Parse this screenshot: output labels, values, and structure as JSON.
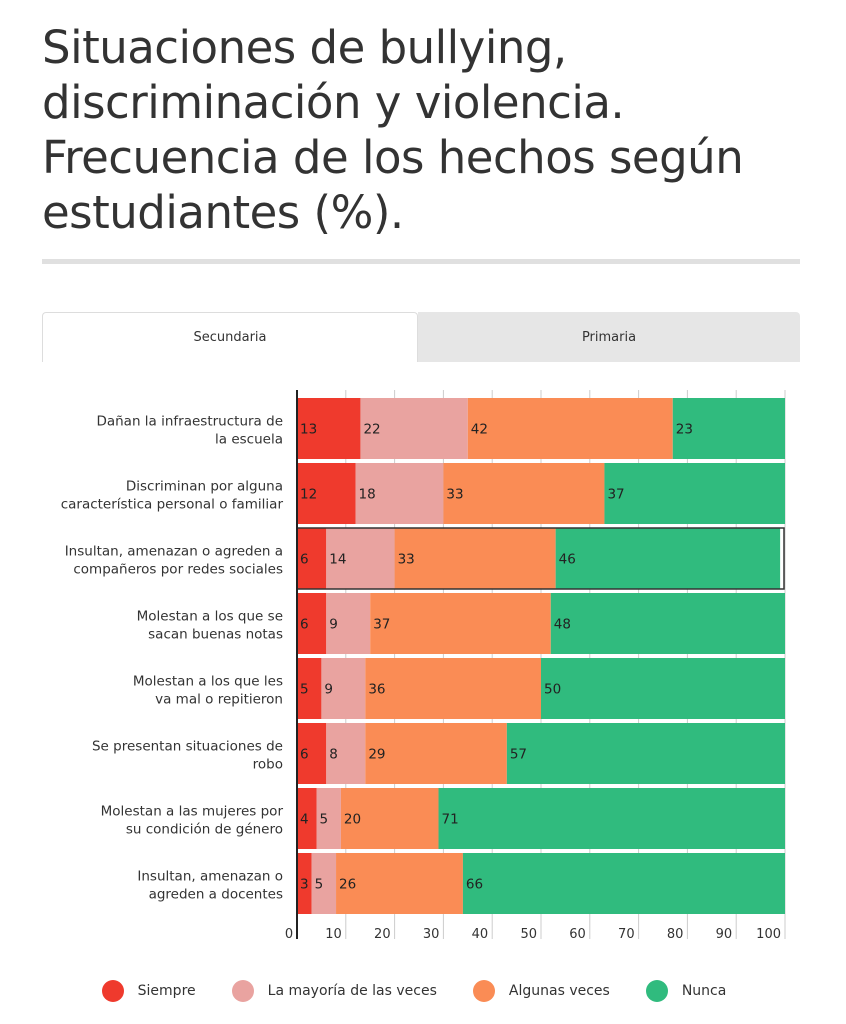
{
  "title": "Situaciones de bullying, discriminación y violencia. Frecuencia de los hechos según estudiantes (%).",
  "tabs": [
    {
      "label": "Secundaria",
      "active": true
    },
    {
      "label": "Primaria",
      "active": false
    }
  ],
  "colors": {
    "Siempre": "#ef3a2d",
    "La mayoría de las veces": "#e9a3a0",
    "Algunas veces": "#fa8c55",
    "Nunca": "#30bb7e"
  },
  "chart_data": {
    "type": "bar",
    "orientation": "horizontal",
    "stacked": true,
    "categories": [
      "Dañan la infraestructura de la escuela",
      "Discriminan por alguna característica personal o familiar",
      "Insultan, amenazan o agreden a compañeros por redes sociales",
      "Molestan a los que se sacan buenas notas",
      "Molestan a los que les va mal o repitieron",
      "Se presentan situaciones de robo",
      "Molestan a las mujeres por su condición de género",
      "Insultan, amenazan o agreden a docentes"
    ],
    "series": [
      {
        "name": "Siempre",
        "values": [
          13,
          12,
          6,
          6,
          5,
          6,
          4,
          3
        ]
      },
      {
        "name": "La mayoría de las veces",
        "values": [
          22,
          18,
          14,
          9,
          9,
          8,
          5,
          5
        ]
      },
      {
        "name": "Algunas veces",
        "values": [
          42,
          33,
          33,
          37,
          36,
          29,
          20,
          26
        ]
      },
      {
        "name": "Nunca",
        "values": [
          23,
          37,
          46,
          48,
          50,
          57,
          71,
          66
        ]
      }
    ],
    "xlim": [
      0,
      100
    ],
    "xticks": [
      0,
      10,
      20,
      30,
      40,
      50,
      60,
      70,
      80,
      90,
      100
    ],
    "grid": true,
    "legend": "bottom"
  }
}
